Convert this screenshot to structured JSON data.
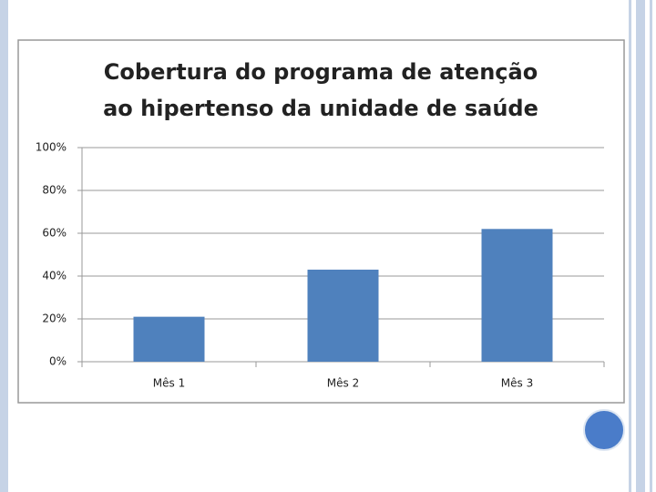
{
  "chart_data": {
    "type": "bar",
    "title": "Cobertura do programa de atenção ao hipertenso da unidade de saúde",
    "categories": [
      "Mês 1",
      "Mês 2",
      "Mês 3"
    ],
    "values": [
      21,
      43,
      62
    ],
    "color": "#4f81bd",
    "ylim": [
      0,
      100
    ],
    "yticks": [
      {
        "value": 0,
        "label": "0%"
      },
      {
        "value": 20,
        "label": "20%"
      },
      {
        "value": 40,
        "label": "40%"
      },
      {
        "value": 60,
        "label": "60%"
      },
      {
        "value": 80,
        "label": "80%"
      },
      {
        "value": 100,
        "label": "100%"
      }
    ],
    "grid": true
  }
}
